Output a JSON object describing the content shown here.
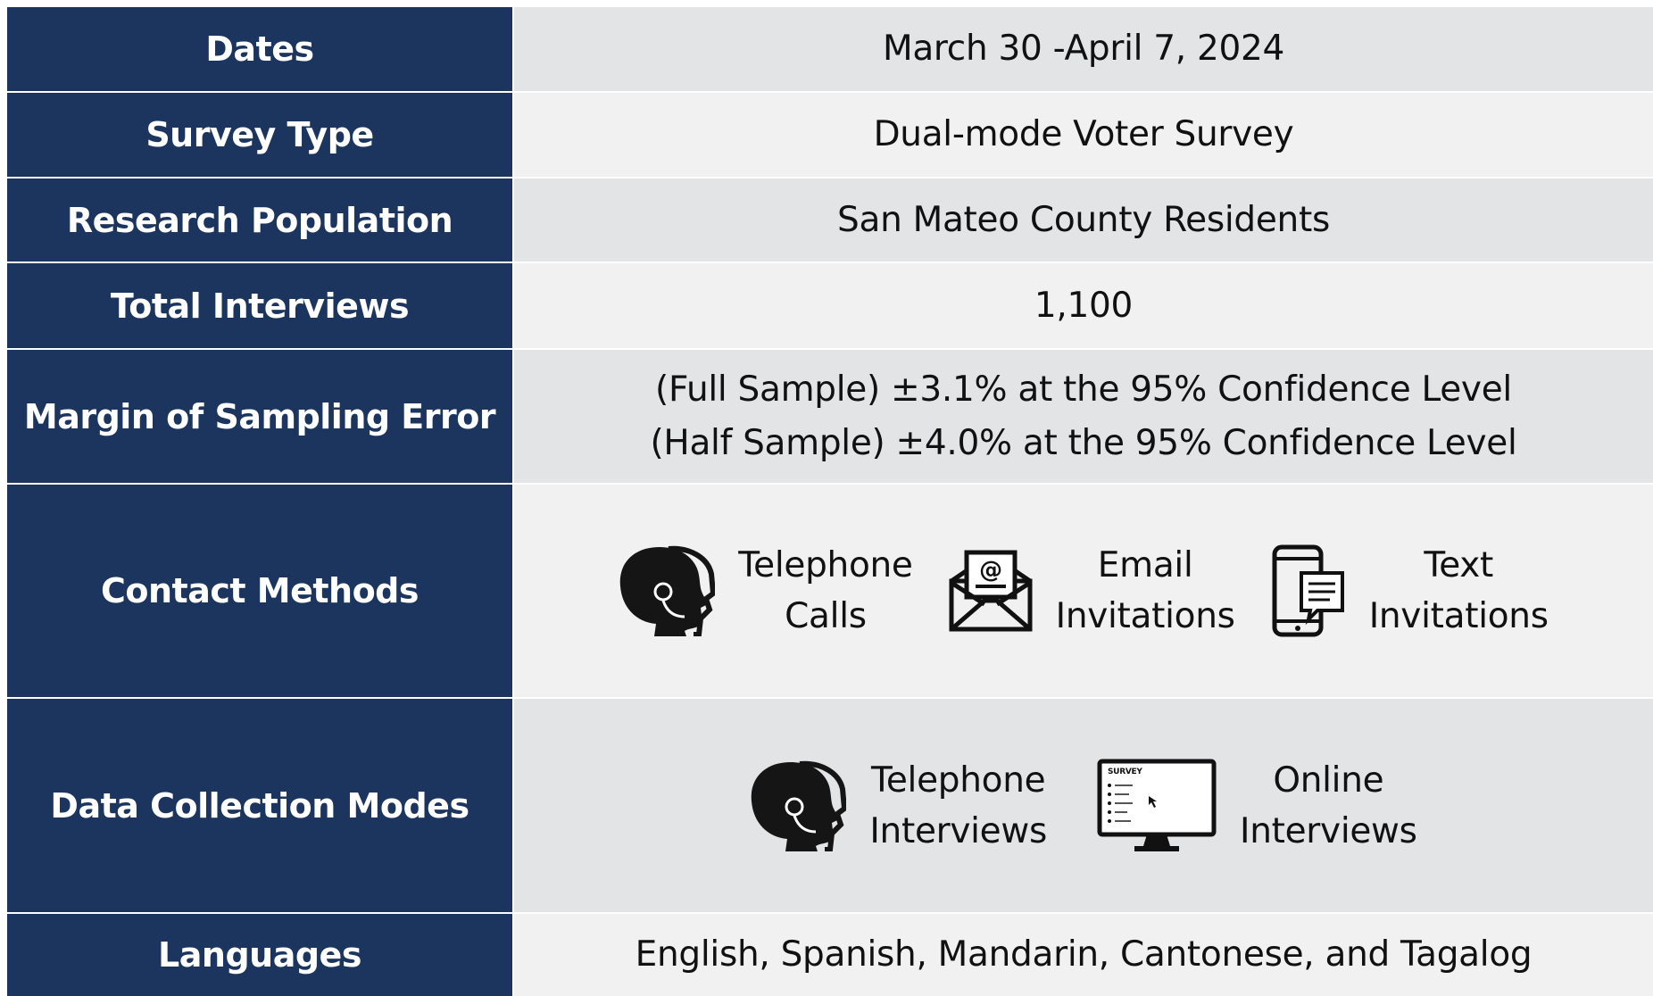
{
  "table": {
    "rows": [
      {
        "label": "Dates",
        "value": "March 30 -April 7, 2024"
      },
      {
        "label": "Survey Type",
        "value": "Dual-mode Voter Survey"
      },
      {
        "label": "Research Population",
        "value": "San Mateo County Residents"
      },
      {
        "label": "Total Interviews",
        "value": "1,100"
      },
      {
        "label": "Margin of Sampling Error",
        "lines": [
          "(Full Sample) ±3.1% at the 95% Confidence Level",
          "(Half Sample) ±4.0% at the 95% Confidence Level"
        ]
      },
      {
        "label": "Contact Methods",
        "items": [
          {
            "lines": [
              "Telephone",
              "Calls"
            ]
          },
          {
            "lines": [
              "Email",
              "Invitations"
            ]
          },
          {
            "lines": [
              "Text",
              "Invitations"
            ]
          }
        ]
      },
      {
        "label": "Data Collection Modes",
        "items": [
          {
            "lines": [
              "Telephone",
              "Interviews"
            ]
          },
          {
            "lines": [
              "Online",
              "Interviews"
            ]
          }
        ]
      },
      {
        "label": "Languages",
        "value": "English, Spanish, Mandarin, Cantonese, and Tagalog"
      }
    ]
  }
}
